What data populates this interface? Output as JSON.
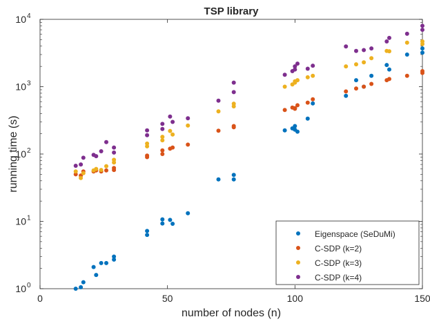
{
  "chart_data": {
    "type": "scatter",
    "title": "TSP library",
    "xlabel": "number of nodes (n)",
    "ylabel": "running time (s)",
    "x_scale": "linear",
    "y_scale": "log",
    "xlim": [
      0,
      150
    ],
    "ylim": [
      1,
      10000
    ],
    "x_ticks": [
      0,
      50,
      100,
      150
    ],
    "x_tick_labels": [
      "0",
      "50",
      "100",
      "150"
    ],
    "y_ticks": [
      1,
      10,
      100,
      1000,
      10000
    ],
    "y_tick_labels": [
      {
        "base": "10",
        "exp": "0"
      },
      {
        "base": "10",
        "exp": "1"
      },
      {
        "base": "10",
        "exp": "2"
      },
      {
        "base": "10",
        "exp": "3"
      },
      {
        "base": "10",
        "exp": "4"
      }
    ],
    "grid": false,
    "legend_position": "bottom-right",
    "series": [
      {
        "name": "Eigenspace (SeDuMi)",
        "color": "#0072BD",
        "points": [
          [
            14,
            1.0
          ],
          [
            16,
            1.05
          ],
          [
            17,
            1.25
          ],
          [
            21,
            2.1
          ],
          [
            22,
            1.6
          ],
          [
            24,
            2.4
          ],
          [
            26,
            2.4
          ],
          [
            29,
            2.7
          ],
          [
            29,
            3.0
          ],
          [
            42,
            7.2
          ],
          [
            42,
            6.3
          ],
          [
            48,
            9.3
          ],
          [
            48,
            10.7
          ],
          [
            51,
            10.5
          ],
          [
            52,
            9.2
          ],
          [
            58,
            13.2
          ],
          [
            70,
            42
          ],
          [
            76,
            49
          ],
          [
            76,
            42
          ],
          [
            96,
            225
          ],
          [
            99,
            240
          ],
          [
            100,
            260
          ],
          [
            100,
            230
          ],
          [
            101,
            215
          ],
          [
            105,
            335
          ],
          [
            107,
            565
          ],
          [
            120,
            730
          ],
          [
            124,
            1250
          ],
          [
            127,
            1000
          ],
          [
            130,
            1450
          ],
          [
            136,
            2100
          ],
          [
            137,
            1800
          ],
          [
            144,
            3000
          ],
          [
            150,
            3200
          ],
          [
            150,
            3700
          ]
        ]
      },
      {
        "name": "C-SDP (k=2)",
        "color": "#D95319",
        "points": [
          [
            14,
            50
          ],
          [
            16,
            48
          ],
          [
            17,
            55
          ],
          [
            21,
            55
          ],
          [
            22,
            57
          ],
          [
            24,
            55
          ],
          [
            26,
            57
          ],
          [
            29,
            58
          ],
          [
            29,
            62
          ],
          [
            42,
            95
          ],
          [
            42,
            90
          ],
          [
            48,
            100
          ],
          [
            48,
            113
          ],
          [
            51,
            120
          ],
          [
            52,
            125
          ],
          [
            58,
            138
          ],
          [
            70,
            222
          ],
          [
            76,
            250
          ],
          [
            76,
            260
          ],
          [
            96,
            450
          ],
          [
            99,
            490
          ],
          [
            100,
            470
          ],
          [
            100,
            480
          ],
          [
            101,
            530
          ],
          [
            105,
            580
          ],
          [
            107,
            650
          ],
          [
            120,
            850
          ],
          [
            124,
            940
          ],
          [
            127,
            1000
          ],
          [
            130,
            1100
          ],
          [
            136,
            1250
          ],
          [
            137,
            1300
          ],
          [
            144,
            1450
          ],
          [
            150,
            1600
          ],
          [
            150,
            1700
          ]
        ]
      },
      {
        "name": "C-SDP (k=3)",
        "color": "#EDB120",
        "points": [
          [
            14,
            55
          ],
          [
            16,
            44
          ],
          [
            17,
            52
          ],
          [
            21,
            57
          ],
          [
            22,
            60
          ],
          [
            24,
            58
          ],
          [
            26,
            66
          ],
          [
            29,
            75
          ],
          [
            29,
            82
          ],
          [
            42,
            130
          ],
          [
            42,
            143
          ],
          [
            48,
            160
          ],
          [
            48,
            180
          ],
          [
            51,
            220
          ],
          [
            52,
            195
          ],
          [
            58,
            265
          ],
          [
            70,
            430
          ],
          [
            76,
            510
          ],
          [
            76,
            560
          ],
          [
            96,
            1000
          ],
          [
            99,
            1080
          ],
          [
            100,
            1150
          ],
          [
            100,
            1200
          ],
          [
            101,
            1250
          ],
          [
            105,
            1380
          ],
          [
            107,
            1450
          ],
          [
            120,
            2000
          ],
          [
            124,
            2150
          ],
          [
            127,
            2300
          ],
          [
            130,
            2650
          ],
          [
            136,
            3400
          ],
          [
            137,
            3350
          ],
          [
            144,
            4500
          ],
          [
            150,
            4300
          ],
          [
            150,
            4700
          ]
        ]
      },
      {
        "name": "C-SDP (k=4)",
        "color": "#7E2F8E",
        "points": [
          [
            14,
            67
          ],
          [
            16,
            70
          ],
          [
            17,
            88
          ],
          [
            21,
            97
          ],
          [
            22,
            93
          ],
          [
            24,
            110
          ],
          [
            26,
            150
          ],
          [
            29,
            105
          ],
          [
            29,
            125
          ],
          [
            42,
            225
          ],
          [
            42,
            190
          ],
          [
            48,
            235
          ],
          [
            48,
            280
          ],
          [
            51,
            360
          ],
          [
            52,
            300
          ],
          [
            58,
            340
          ],
          [
            70,
            620
          ],
          [
            76,
            830
          ],
          [
            76,
            1150
          ],
          [
            96,
            1500
          ],
          [
            99,
            1700
          ],
          [
            100,
            1800
          ],
          [
            100,
            2000
          ],
          [
            101,
            2200
          ],
          [
            105,
            1850
          ],
          [
            107,
            2050
          ],
          [
            120,
            3950
          ],
          [
            124,
            3400
          ],
          [
            127,
            3500
          ],
          [
            130,
            3700
          ],
          [
            136,
            4700
          ],
          [
            137,
            5300
          ],
          [
            144,
            6100
          ],
          [
            150,
            7000
          ],
          [
            150,
            8000
          ]
        ]
      }
    ]
  }
}
